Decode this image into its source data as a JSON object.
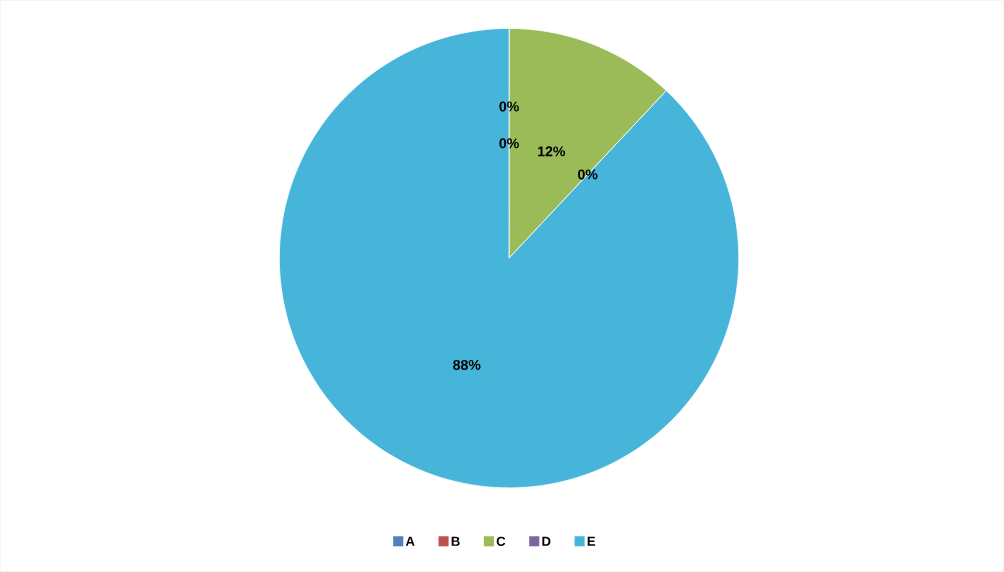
{
  "chart_data": {
    "type": "pie",
    "categories": [
      "A",
      "B",
      "C",
      "D",
      "E"
    ],
    "values": [
      0,
      0,
      12,
      0,
      88
    ],
    "colors": [
      "#4f81bd",
      "#c0504d",
      "#9bbb59",
      "#8064a2",
      "#46b5d9"
    ],
    "value_labels": [
      "0%",
      "0%",
      "12%",
      "0%",
      "88%"
    ],
    "legend": "bottom"
  }
}
